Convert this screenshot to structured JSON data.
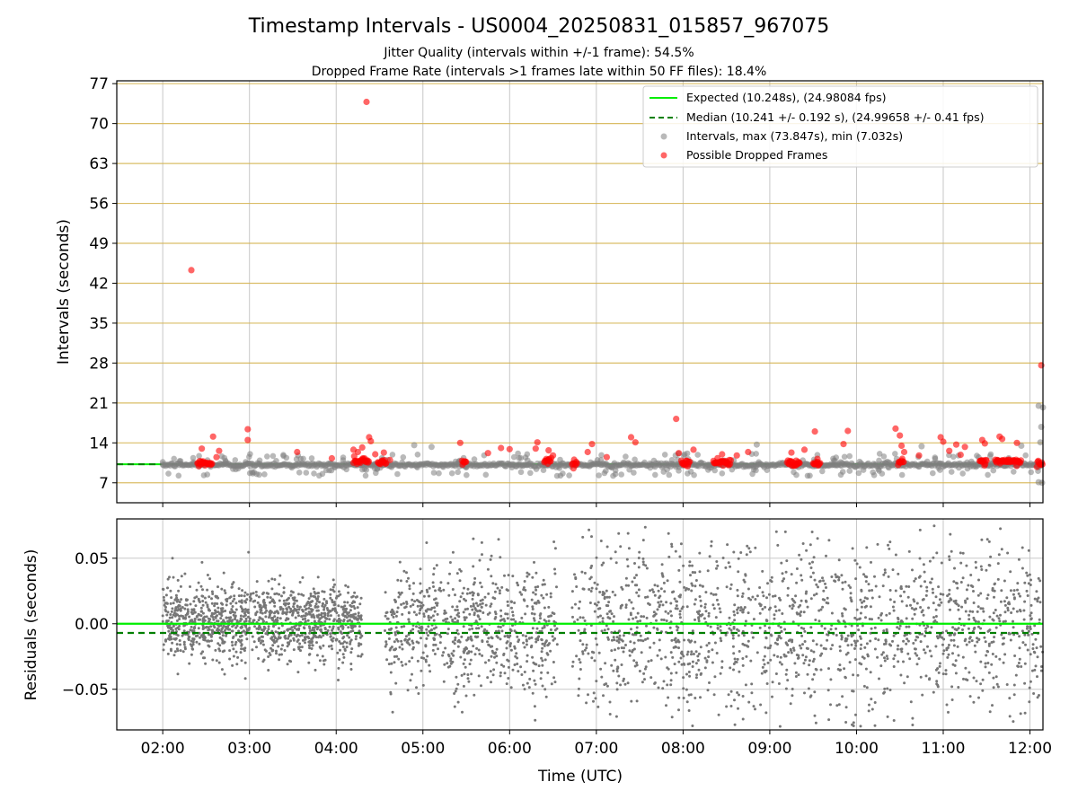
{
  "chart_data": {
    "title": "Timestamp Intervals - US0004_20250831_015857_967075",
    "subtitles": [
      "Jitter Quality (intervals within +/-1 frame): 54.5%",
      "Dropped Frame Rate (intervals >1 frames late within 50 FF files): 18.4%"
    ],
    "xlabel": "Time (UTC)",
    "x_tick_labels": [
      "02:00",
      "03:00",
      "04:00",
      "05:00",
      "06:00",
      "07:00",
      "08:00",
      "09:00",
      "10:00",
      "11:00",
      "12:00"
    ],
    "x_range_hours": [
      1.47,
      12.15
    ],
    "panels": [
      {
        "type": "scatter",
        "ylabel": "Intervals (seconds)",
        "ylim": [
          3.5,
          77.5
        ],
        "y_ticks": [
          7,
          14,
          21,
          28,
          35,
          42,
          49,
          56,
          63,
          70,
          77
        ],
        "y_tick_labels": [
          "7",
          "14",
          "21",
          "28",
          "35",
          "42",
          "49",
          "56",
          "63",
          "70",
          "77"
        ],
        "hgrid_color": "#d4b24c",
        "legend_position": "upper right",
        "lines": [
          {
            "name": "Expected (10.248s), (24.98084 fps)",
            "y": 10.248,
            "color": "#00ee00",
            "style": "solid"
          },
          {
            "name": "Median (10.241 +/- 0.192 s), (24.99658 +/- 0.41 fps)",
            "y": 10.241,
            "color": "#007f00",
            "style": "dashed"
          }
        ],
        "series": [
          {
            "name": "Intervals, max (73.847s), min (7.032s)",
            "color": "#808080",
            "max": 73.847,
            "min": 7.032
          },
          {
            "name": "Possible Dropped Frames",
            "color": "#ff0000",
            "points": [
              [
                2.33,
                44.3
              ],
              [
                2.58,
                15.1
              ],
              [
                2.65,
                12.6
              ],
              [
                2.45,
                13.0
              ],
              [
                2.62,
                11.5
              ],
              [
                2.98,
                16.4
              ],
              [
                2.98,
                14.5
              ],
              [
                3.55,
                12.4
              ],
              [
                3.95,
                11.3
              ],
              [
                4.35,
                73.8
              ],
              [
                4.2,
                12.8
              ],
              [
                4.25,
                12.4
              ],
              [
                4.3,
                13.2
              ],
              [
                4.38,
                15.0
              ],
              [
                4.4,
                14.3
              ],
              [
                4.45,
                12.0
              ],
              [
                4.55,
                12.3
              ],
              [
                4.62,
                11.0
              ],
              [
                5.43,
                14.0
              ],
              [
                5.75,
                12.2
              ],
              [
                5.9,
                13.1
              ],
              [
                6.0,
                12.9
              ],
              [
                6.3,
                13.0
              ],
              [
                6.32,
                14.1
              ],
              [
                6.45,
                12.7
              ],
              [
                6.5,
                11.8
              ],
              [
                6.9,
                12.4
              ],
              [
                6.95,
                13.8
              ],
              [
                7.12,
                11.5
              ],
              [
                7.4,
                15.0
              ],
              [
                7.45,
                14.1
              ],
              [
                7.92,
                18.2
              ],
              [
                7.95,
                12.2
              ],
              [
                8.12,
                12.8
              ],
              [
                8.45,
                12.0
              ],
              [
                8.62,
                11.8
              ],
              [
                8.75,
                12.4
              ],
              [
                9.25,
                12.3
              ],
              [
                9.4,
                12.8
              ],
              [
                9.52,
                16.0
              ],
              [
                9.55,
                11.2
              ],
              [
                9.85,
                13.8
              ],
              [
                9.9,
                16.1
              ],
              [
                10.45,
                16.5
              ],
              [
                10.5,
                15.3
              ],
              [
                10.52,
                13.5
              ],
              [
                10.55,
                12.4
              ],
              [
                10.72,
                11.8
              ],
              [
                10.97,
                15.0
              ],
              [
                11.0,
                14.2
              ],
              [
                11.07,
                12.6
              ],
              [
                11.15,
                13.7
              ],
              [
                11.2,
                11.9
              ],
              [
                11.25,
                13.3
              ],
              [
                11.45,
                14.5
              ],
              [
                11.48,
                13.9
              ],
              [
                11.65,
                15.1
              ],
              [
                11.68,
                14.7
              ],
              [
                11.85,
                14.0
              ],
              [
                12.13,
                27.6
              ]
            ],
            "clusters": [
              [
                2.4,
                2.57,
                10.4
              ],
              [
                4.2,
                4.38,
                10.9
              ],
              [
                4.48,
                4.58,
                10.6
              ],
              [
                5.45,
                5.5,
                10.7
              ],
              [
                6.4,
                6.48,
                10.9
              ],
              [
                6.72,
                6.78,
                10.5
              ],
              [
                7.98,
                8.08,
                10.5
              ],
              [
                8.35,
                8.55,
                10.6
              ],
              [
                9.2,
                9.35,
                10.5
              ],
              [
                9.5,
                9.58,
                10.4
              ],
              [
                10.48,
                10.55,
                10.6
              ],
              [
                11.42,
                11.5,
                10.5
              ],
              [
                11.6,
                11.9,
                10.7
              ],
              [
                12.08,
                12.15,
                10.4
              ]
            ]
          }
        ]
      },
      {
        "type": "scatter",
        "ylabel": "Residuals (seconds)",
        "ylim": [
          -0.081,
          0.08
        ],
        "y_ticks": [
          -0.05,
          0,
          0.05
        ],
        "y_tick_labels": [
          "−0.05",
          "0.00",
          "0.05"
        ],
        "lines": [
          {
            "name": "Expected",
            "y": 0,
            "color": "#00ee00",
            "style": "solid"
          },
          {
            "name": "Median",
            "y": -0.007,
            "color": "#007f00",
            "style": "dashed"
          }
        ],
        "series": [
          {
            "name": "Residuals",
            "color": "#808080"
          }
        ]
      }
    ]
  }
}
